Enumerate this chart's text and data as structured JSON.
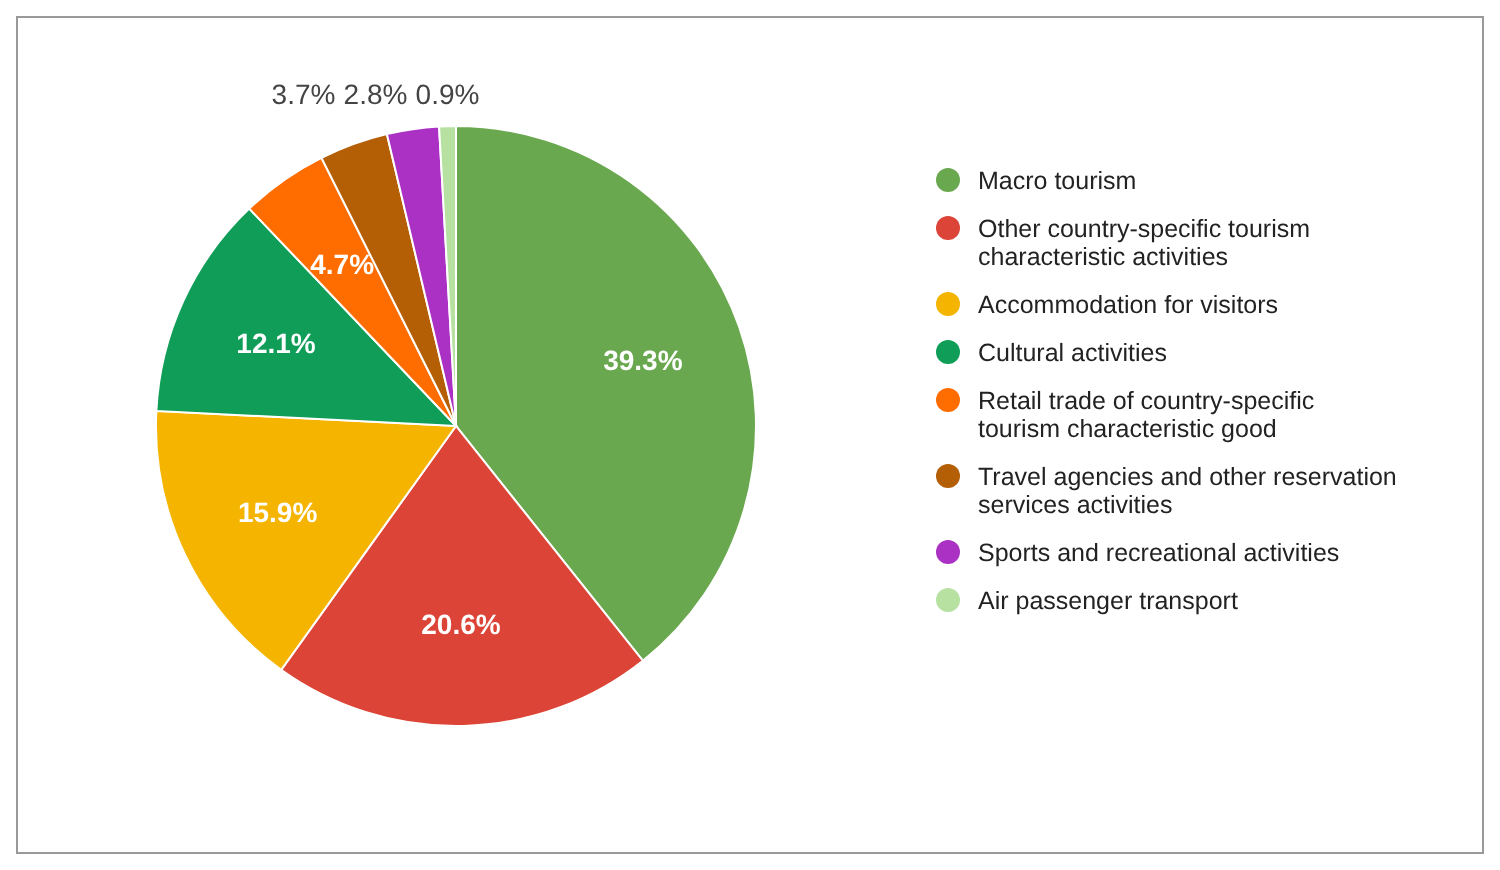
{
  "chart_data": {
    "type": "pie",
    "categories": [
      "Macro tourism",
      "Other country-specific tourism characteristic activities",
      "Accommodation for visitors",
      "Cultural activities",
      "Retail trade of country-specific tourism characteristic good",
      "Travel agencies and other reservation services activities",
      "Sports and recreational activities",
      "Air passenger transport"
    ],
    "values": [
      39.3,
      20.6,
      15.9,
      12.1,
      4.7,
      3.7,
      2.8,
      0.9
    ],
    "colors": [
      "#6aa84f",
      "#dc4437",
      "#f4b400",
      "#0f9d58",
      "#ff6d00",
      "#b45f06",
      "#ab30c4",
      "#b7e1a1"
    ],
    "value_labels": [
      "39.3%",
      "20.6%",
      "15.9%",
      "12.1%",
      "4.7%",
      "3.7%",
      "2.8%",
      "0.9%"
    ],
    "legend": "right"
  }
}
